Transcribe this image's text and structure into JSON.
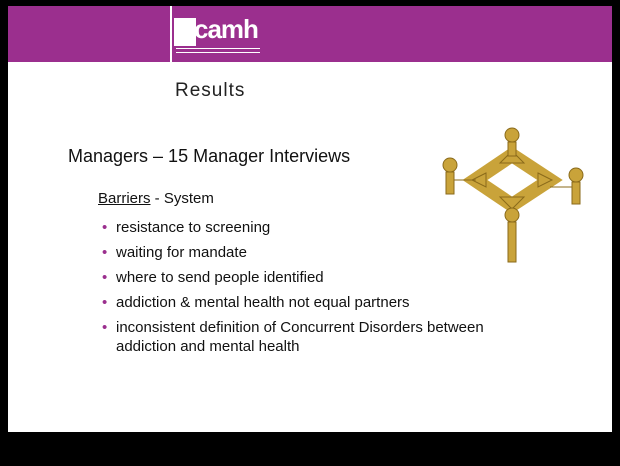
{
  "header": {
    "logo": "camh",
    "title": "Results"
  },
  "body": {
    "heading": "Managers – 15 Manager Interviews",
    "subheading": {
      "underlined": "Barriers",
      "rest": " - System"
    },
    "bullets": [
      "resistance to screening",
      "waiting for mandate",
      "where to send people identified",
      "addiction & mental health not equal partners",
      "inconsistent definition of Concurrent Disorders between addiction and mental health"
    ]
  }
}
